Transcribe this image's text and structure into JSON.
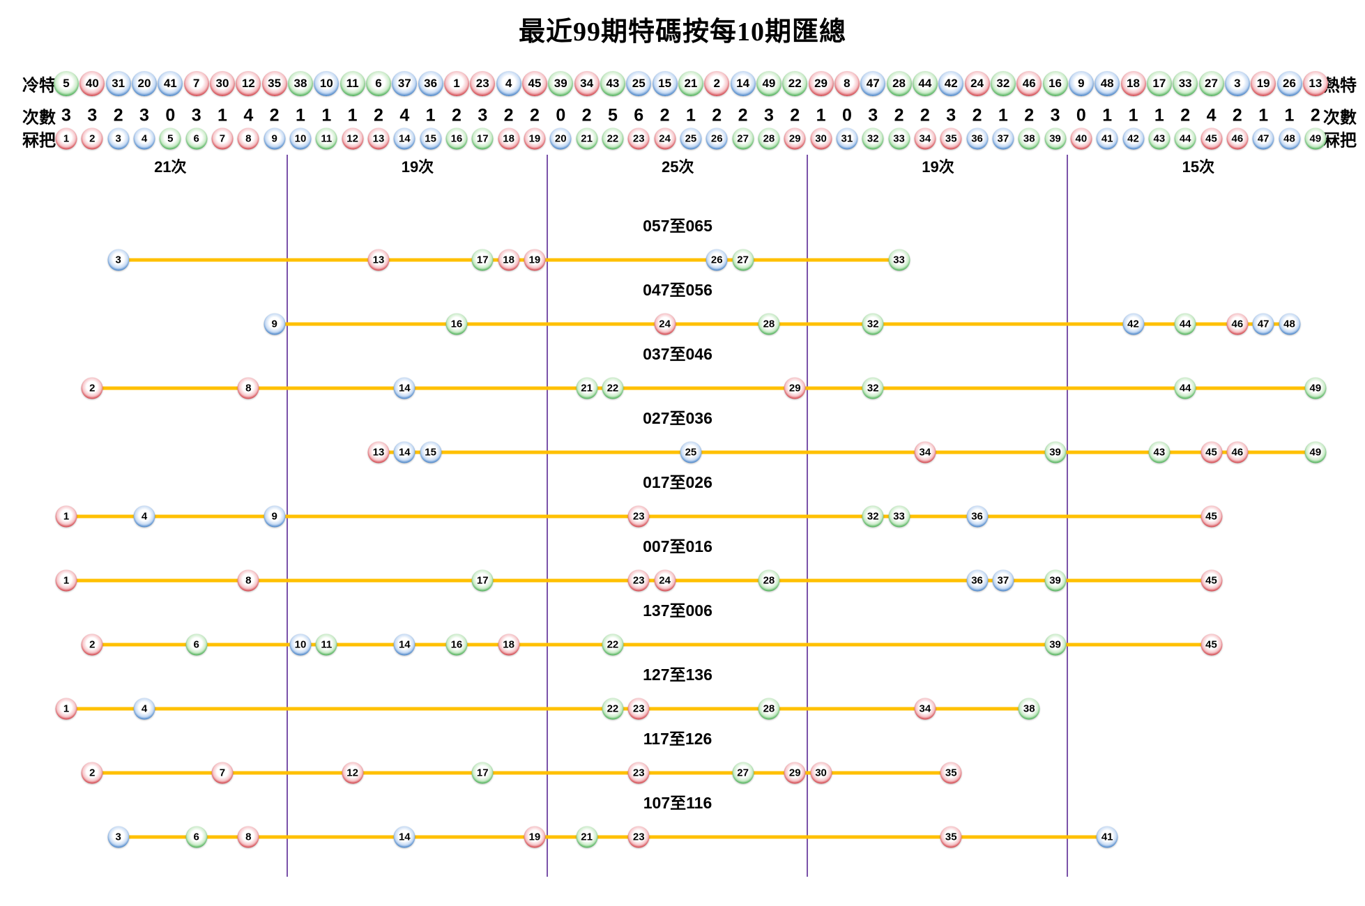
{
  "title": "最近99期特碼按每10期匯總",
  "colors": {
    "red": "#c4161e",
    "blue": "#1b64b7",
    "green": "#1f9a2e",
    "line": "#ffc000",
    "divider": "#6b3fa0"
  },
  "ball_color_groups": {
    "red": [
      1,
      2,
      7,
      8,
      12,
      13,
      18,
      19,
      23,
      24,
      29,
      30,
      34,
      35,
      40,
      45,
      46
    ],
    "blue": [
      3,
      4,
      9,
      10,
      14,
      15,
      20,
      25,
      26,
      31,
      36,
      37,
      41,
      42,
      47,
      48
    ],
    "green": [
      5,
      6,
      11,
      16,
      17,
      21,
      22,
      27,
      28,
      32,
      33,
      38,
      39,
      43,
      44,
      49
    ]
  },
  "header": {
    "cold_label": "冷特",
    "hot_label": "熱特",
    "counts_label": "次數",
    "numbers_label": "冧把",
    "cold_to_hot_numbers": [
      5,
      40,
      31,
      20,
      41,
      7,
      30,
      12,
      35,
      38,
      10,
      11,
      6,
      37,
      36,
      1,
      23,
      4,
      45,
      39,
      34,
      43,
      25,
      15,
      21,
      2,
      14,
      49,
      22,
      29,
      8,
      47,
      28,
      44,
      42,
      24,
      32,
      46,
      16,
      9,
      48,
      18,
      17,
      33,
      27,
      3,
      19,
      26,
      13
    ],
    "counts_per_number": [
      3,
      3,
      2,
      3,
      0,
      3,
      1,
      4,
      2,
      1,
      1,
      1,
      2,
      4,
      1,
      2,
      3,
      2,
      2,
      0,
      2,
      5,
      6,
      2,
      1,
      2,
      2,
      3,
      2,
      1,
      0,
      3,
      2,
      2,
      3,
      2,
      1,
      2,
      3,
      0,
      1,
      1,
      1,
      2,
      4,
      2,
      1,
      1,
      2
    ],
    "number_row": "1-49",
    "section_totals": [
      "21次",
      "19次",
      "25次",
      "19次",
      "15次"
    ]
  },
  "chart_data": {
    "type": "scatter",
    "title": "最近99期特碼按每10期匯總",
    "x_range": [
      1,
      49
    ],
    "grid": "vertical dividers after 9, 19, 29, 39",
    "rows": [
      {
        "label": "057至065",
        "balls": [
          3,
          13,
          17,
          18,
          19,
          26,
          27,
          33
        ]
      },
      {
        "label": "047至056",
        "balls": [
          9,
          16,
          24,
          28,
          32,
          42,
          44,
          46,
          47,
          48
        ]
      },
      {
        "label": "037至046",
        "balls": [
          2,
          8,
          14,
          21,
          22,
          29,
          32,
          44,
          49
        ]
      },
      {
        "label": "027至036",
        "balls": [
          13,
          14,
          15,
          25,
          34,
          39,
          43,
          45,
          46,
          49
        ]
      },
      {
        "label": "017至026",
        "balls": [
          1,
          4,
          9,
          23,
          32,
          33,
          36,
          45
        ]
      },
      {
        "label": "007至016",
        "balls": [
          1,
          8,
          17,
          23,
          24,
          28,
          36,
          37,
          39,
          45
        ]
      },
      {
        "label": "137至006",
        "balls": [
          2,
          6,
          10,
          11,
          14,
          16,
          18,
          22,
          39,
          45
        ]
      },
      {
        "label": "127至136",
        "balls": [
          1,
          4,
          22,
          23,
          28,
          34,
          38
        ]
      },
      {
        "label": "117至126",
        "balls": [
          2,
          7,
          12,
          17,
          23,
          27,
          29,
          30,
          35
        ]
      },
      {
        "label": "107至116",
        "balls": [
          3,
          6,
          8,
          14,
          19,
          21,
          23,
          35,
          41
        ]
      }
    ]
  }
}
